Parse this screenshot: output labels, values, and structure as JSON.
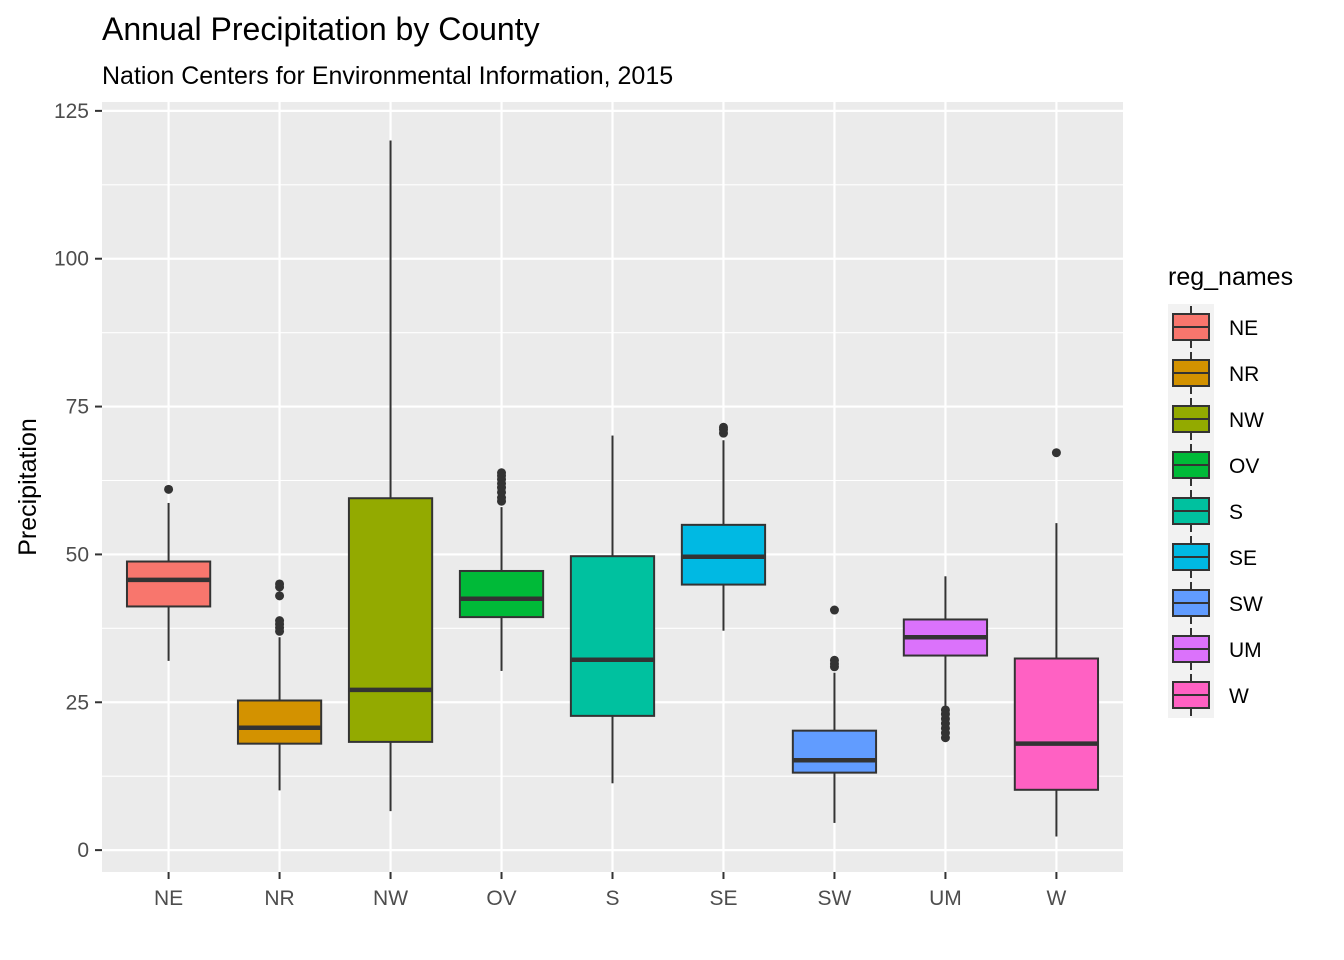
{
  "chart_data": {
    "type": "boxplot",
    "title": "Annual Precipitation by County",
    "subtitle": "Nation Centers for Environmental Information, 2015",
    "xlabel": "",
    "ylabel": "Precipitation",
    "ylim": [
      -3.7,
      126.5
    ],
    "yticks": [
      0,
      25,
      50,
      75,
      100,
      125
    ],
    "grid": true,
    "legend": {
      "title": "reg_names",
      "position": "right"
    },
    "categories": [
      "NE",
      "NR",
      "NW",
      "OV",
      "S",
      "SE",
      "SW",
      "UM",
      "W"
    ],
    "colors": [
      "#F8766D",
      "#D39200",
      "#93AA00",
      "#00BA38",
      "#00C19F",
      "#00B9E3",
      "#619CFF",
      "#DB72FB",
      "#FF61C3"
    ],
    "boxes": [
      {
        "name": "NE",
        "q1": 41.2,
        "median": 45.7,
        "q3": 48.8,
        "whisker_low": 32.0,
        "whisker_high": 58.7,
        "outliers": [
          61.0
        ]
      },
      {
        "name": "NR",
        "q1": 18.0,
        "median": 20.7,
        "q3": 25.3,
        "whisker_low": 10.1,
        "whisker_high": 36.0,
        "outliers": [
          37.0,
          37.6,
          38.2,
          38.8,
          43.0,
          44.5,
          45.0
        ]
      },
      {
        "name": "NW",
        "q1": 18.3,
        "median": 27.1,
        "q3": 59.5,
        "whisker_low": 6.6,
        "whisker_high": 120.0,
        "outliers": []
      },
      {
        "name": "OV",
        "q1": 39.4,
        "median": 42.5,
        "q3": 47.2,
        "whisker_low": 30.3,
        "whisker_high": 58.0,
        "outliers": [
          59.0,
          59.6,
          60.5,
          61.3,
          62.0,
          62.7,
          63.3,
          63.8
        ]
      },
      {
        "name": "S",
        "q1": 22.7,
        "median": 32.2,
        "q3": 49.7,
        "whisker_low": 11.3,
        "whisker_high": 70.1,
        "outliers": []
      },
      {
        "name": "SE",
        "q1": 44.9,
        "median": 49.6,
        "q3": 55.0,
        "whisker_low": 37.1,
        "whisker_high": 69.3,
        "outliers": [
          70.5,
          71.1,
          71.5
        ]
      },
      {
        "name": "SW",
        "q1": 13.1,
        "median": 15.2,
        "q3": 20.2,
        "whisker_low": 4.6,
        "whisker_high": 30.0,
        "outliers": [
          31.0,
          31.5,
          32.1,
          40.6
        ]
      },
      {
        "name": "UM",
        "q1": 32.9,
        "median": 36.0,
        "q3": 39.0,
        "whisker_low": 24.0,
        "whisker_high": 46.3,
        "outliers": [
          19.0,
          19.8,
          20.6,
          21.4,
          22.2,
          23.0,
          23.7
        ]
      },
      {
        "name": "W",
        "q1": 10.2,
        "median": 18.0,
        "q3": 32.4,
        "whisker_low": 2.3,
        "whisker_high": 55.3,
        "outliers": [
          67.2
        ]
      }
    ]
  }
}
